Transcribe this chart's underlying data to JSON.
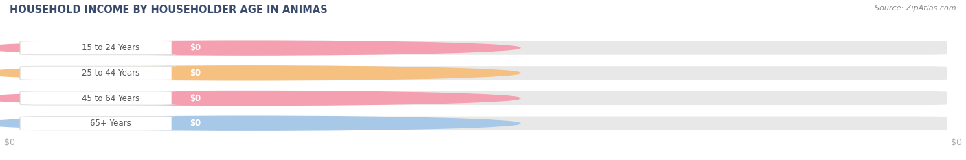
{
  "title": "HOUSEHOLD INCOME BY HOUSEHOLDER AGE IN ANIMAS",
  "source": "Source: ZipAtlas.com",
  "categories": [
    "15 to 24 Years",
    "25 to 44 Years",
    "45 to 64 Years",
    "65+ Years"
  ],
  "values": [
    0,
    0,
    0,
    0
  ],
  "bar_colors": [
    "#f4a0b0",
    "#f5c080",
    "#f4a0b0",
    "#a8c8e8"
  ],
  "value_pill_colors": [
    "#f4a0b0",
    "#f5c080",
    "#f4a0b0",
    "#a8c8e8"
  ],
  "background_color": "#ffffff",
  "bar_bg_color": "#e8e8e8",
  "tick_label_color": "#aaaaaa",
  "title_color": "#3a4a6b",
  "source_color": "#888888",
  "xlim": [
    0,
    1
  ],
  "bar_height": 0.55,
  "figsize": [
    14.06,
    2.33
  ],
  "dpi": 100
}
